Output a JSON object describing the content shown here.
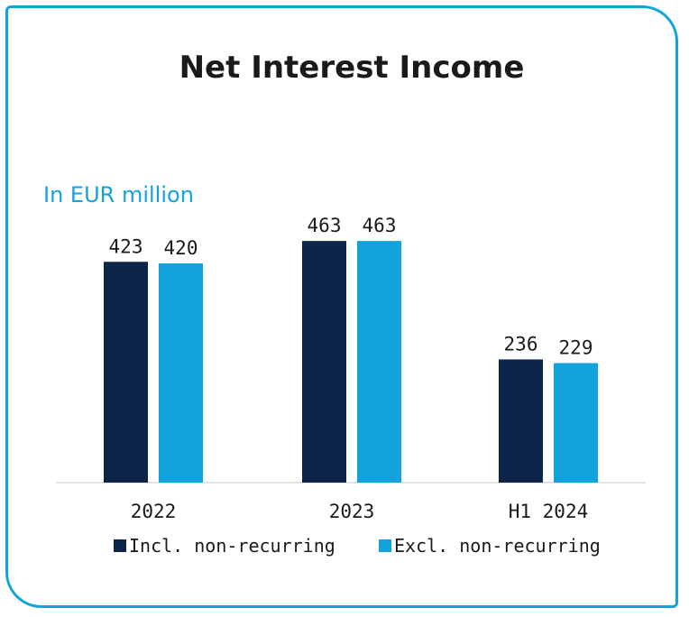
{
  "chart_data": {
    "type": "bar",
    "title": "Net Interest Income",
    "subtitle": "In EUR million",
    "categories": [
      "2022",
      "2023",
      "H1 2024"
    ],
    "series": [
      {
        "name": "Incl. non-recurring",
        "color": "#0d2549",
        "values": [
          423,
          463,
          236
        ]
      },
      {
        "name": "Excl. non-recurring",
        "color": "#13a3dc",
        "values": [
          420,
          463,
          229
        ]
      }
    ],
    "ylim": [
      0,
      500
    ],
    "grid": false,
    "legend": "bottom"
  },
  "colors": {
    "border": "#13a3dc",
    "title_text": "#1a1a1a",
    "subtitle_text": "#13a3dc"
  }
}
